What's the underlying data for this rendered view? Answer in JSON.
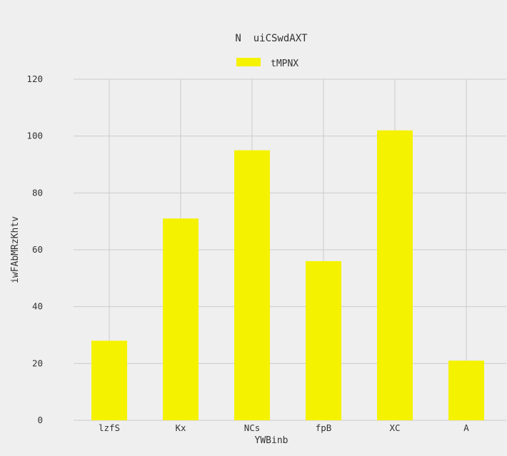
{
  "chart_data": {
    "type": "bar",
    "title": "N  uiCSwdAXT",
    "xlabel": "YWBinb",
    "ylabel": "iwFAbMRzKhtv",
    "categories": [
      "lzfS",
      "Kx",
      "NCs",
      "fpB",
      "XC",
      "A"
    ],
    "series": [
      {
        "name": "tMPNX",
        "values": [
          28,
          71,
          95,
          56,
          102,
          21
        ],
        "color": "#f5f200"
      }
    ],
    "ylim": [
      0,
      120
    ],
    "yticks": [
      0,
      20,
      40,
      60,
      80,
      100,
      120
    ],
    "grid": true,
    "legend_position": "top-center"
  }
}
